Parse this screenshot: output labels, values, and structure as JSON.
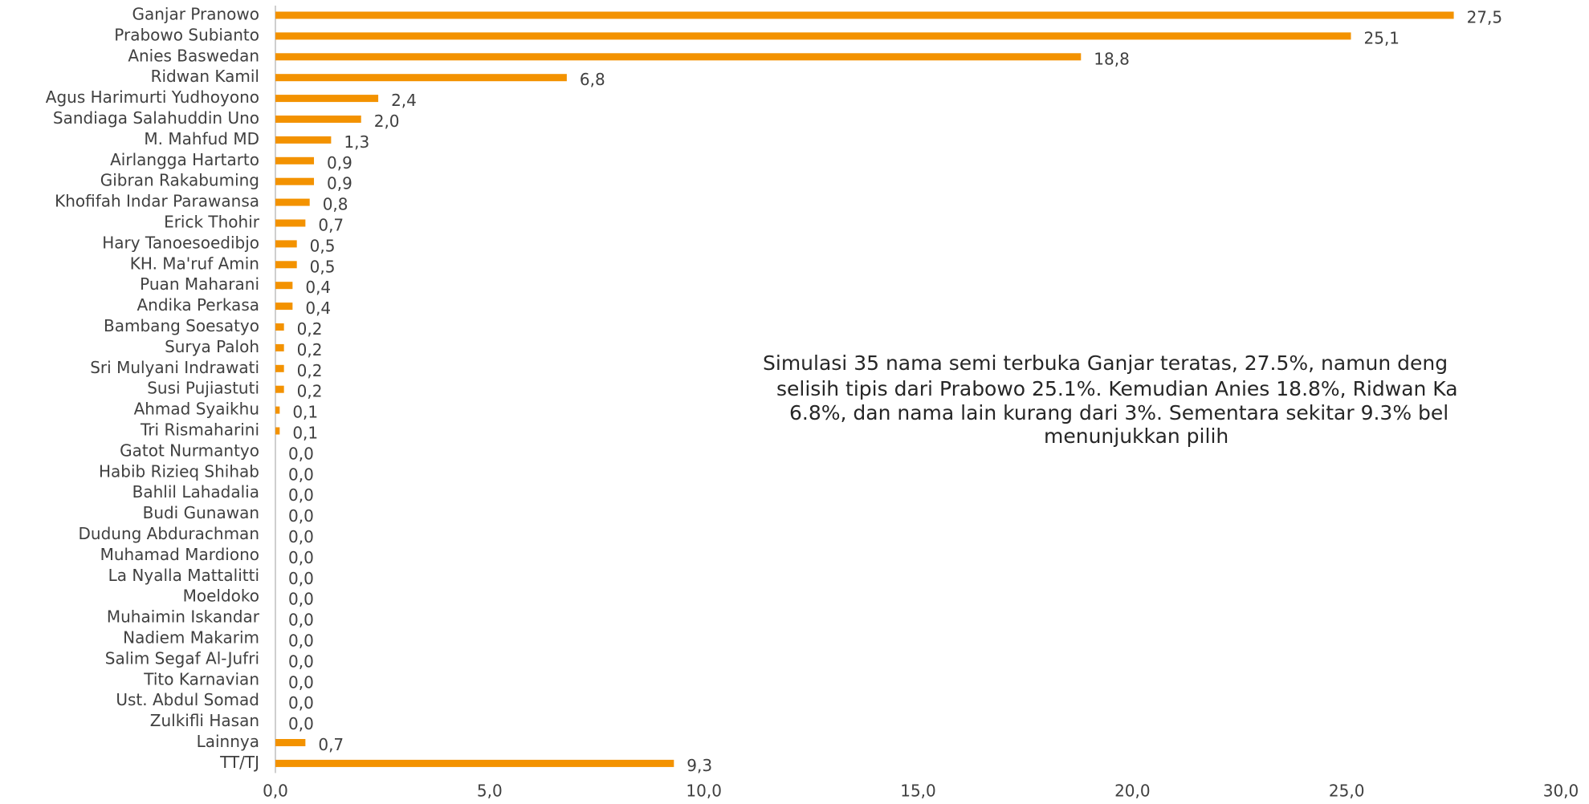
{
  "chart_data": {
    "type": "bar",
    "orientation": "horizontal",
    "color": "#f39200",
    "categories": [
      "Ganjar Pranowo",
      "Prabowo Subianto",
      "Anies Baswedan",
      "Ridwan Kamil",
      "Agus Harimurti Yudhoyono",
      "Sandiaga Salahuddin Uno",
      "M. Mahfud MD",
      "Airlangga Hartarto",
      "Gibran Rakabuming",
      "Khofifah Indar Parawansa",
      "Erick Thohir",
      "Hary Tanoesoedibjo",
      "KH. Ma'ruf Amin",
      "Puan Maharani",
      "Andika Perkasa",
      "Bambang Soesatyo",
      "Surya Paloh",
      "Sri Mulyani Indrawati",
      "Susi Pujiastuti",
      "Ahmad Syaikhu",
      "Tri Rismaharini",
      "Gatot Nurmantyo",
      "Habib Rizieq Shihab",
      "Bahlil Lahadalia",
      "Budi Gunawan",
      "Dudung Abdurachman",
      "Muhamad Mardiono",
      "La Nyalla Mattalitti",
      "Moeldoko",
      "Muhaimin Iskandar",
      "Nadiem Makarim",
      "Salim Segaf Al-Jufri",
      "Tito Karnavian",
      "Ust. Abdul Somad",
      "Zulkifli Hasan",
      "Lainnya",
      "TT/TJ"
    ],
    "values": [
      27.5,
      25.1,
      18.8,
      6.8,
      2.4,
      2.0,
      1.3,
      0.9,
      0.9,
      0.8,
      0.7,
      0.5,
      0.5,
      0.4,
      0.4,
      0.2,
      0.2,
      0.2,
      0.2,
      0.1,
      0.1,
      0,
      0,
      0,
      0,
      0,
      0,
      0,
      0,
      0,
      0,
      0,
      0,
      0,
      0,
      0.7,
      9.3
    ],
    "value_labels": [
      "27,5",
      "25,1",
      "18,8",
      "6,8",
      "2,4",
      "2,0",
      "1,3",
      "0,9",
      "0,9",
      "0,8",
      "0,7",
      "0,5",
      "0,5",
      "0,4",
      "0,4",
      "0,2",
      "0,2",
      "0,2",
      "0,2",
      "0,1",
      "0,1",
      "0,0",
      "0,0",
      "0,0",
      "0,0",
      "0,0",
      "0,0",
      "0,0",
      "0,0",
      "0,0",
      "0,0",
      "0,0",
      "0,0",
      "0,0",
      "0,0",
      "0,7",
      "9,3"
    ],
    "xlim": [
      0,
      30
    ],
    "xticks": [
      {
        "value": 0,
        "label": "0,0"
      },
      {
        "value": 5,
        "label": "5,0"
      },
      {
        "value": 10,
        "label": "10,0"
      },
      {
        "value": 15,
        "label": "15,0"
      },
      {
        "value": 20,
        "label": "20,0"
      },
      {
        "value": 25,
        "label": "25,0"
      },
      {
        "value": 30,
        "label": "30,0"
      }
    ],
    "annotation": [
      "Simulasi 35 nama semi terbuka Ganjar teratas, 27.5%, namun deng",
      "selisih tipis dari Prabowo 25.1%. Kemudian Anies 18.8%, Ridwan Ka",
      "6.8%, dan nama lain kurang dari 3%. Sementara sekitar 9.3% bel",
      "menunjukkan pilih"
    ]
  }
}
